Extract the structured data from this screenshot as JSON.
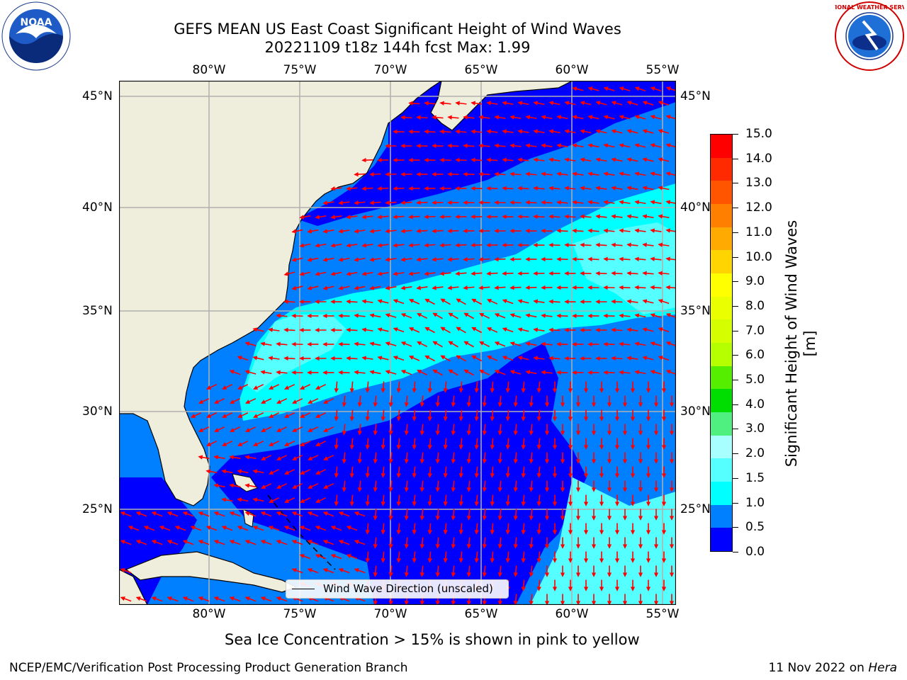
{
  "title": {
    "line1": "GEFS MEAN US East Coast Significant Height of Wind Waves",
    "line2": "20221109 t18z 144h fcst   Max: 1.99"
  },
  "map": {
    "lon_labels": [
      "80°W",
      "75°W",
      "70°W",
      "65°W",
      "60°W",
      "55°W"
    ],
    "lat_labels": [
      "45°N",
      "40°N",
      "35°N",
      "30°N",
      "25°N"
    ],
    "lon_range": [
      -85,
      -54.5
    ],
    "lat_range": [
      20.5,
      45.8
    ],
    "legend_label": "Wind Wave Direction (unscaled)",
    "colors": {
      "land": "#efeedc",
      "arrow": "#ff0000",
      "grid": "#b0b0b0"
    }
  },
  "colorbar": {
    "label": "Significant Height of Wind Waves [m]",
    "ticks": [
      "15.0",
      "14.0",
      "13.0",
      "12.0",
      "11.0",
      "10.0",
      "9.0",
      "8.0",
      "7.0",
      "6.0",
      "5.0",
      "4.0",
      "3.0",
      "2.0",
      "1.5",
      "1.0",
      "0.5",
      "0.0"
    ],
    "colors": [
      "#ff0000",
      "#ff2a00",
      "#ff5400",
      "#ff8000",
      "#ffaa00",
      "#ffd400",
      "#ffff00",
      "#eaff00",
      "#d5ff00",
      "#b5ff00",
      "#55ee00",
      "#00dd00",
      "#50f080",
      "#a8ffff",
      "#55ffff",
      "#00ffff",
      "#0080ff",
      "#0000ff"
    ]
  },
  "logos": {
    "left": "NOAA",
    "right": "NATIONAL WEATHER SERVICE"
  },
  "note": "Sea Ice Concentration > 15% is shown in pink to yellow",
  "footer": {
    "left": "NCEP/EMC/Verification Post Processing Product Generation Branch",
    "right_prefix": "11 Nov 2022 on ",
    "right_host": "Hera"
  }
}
